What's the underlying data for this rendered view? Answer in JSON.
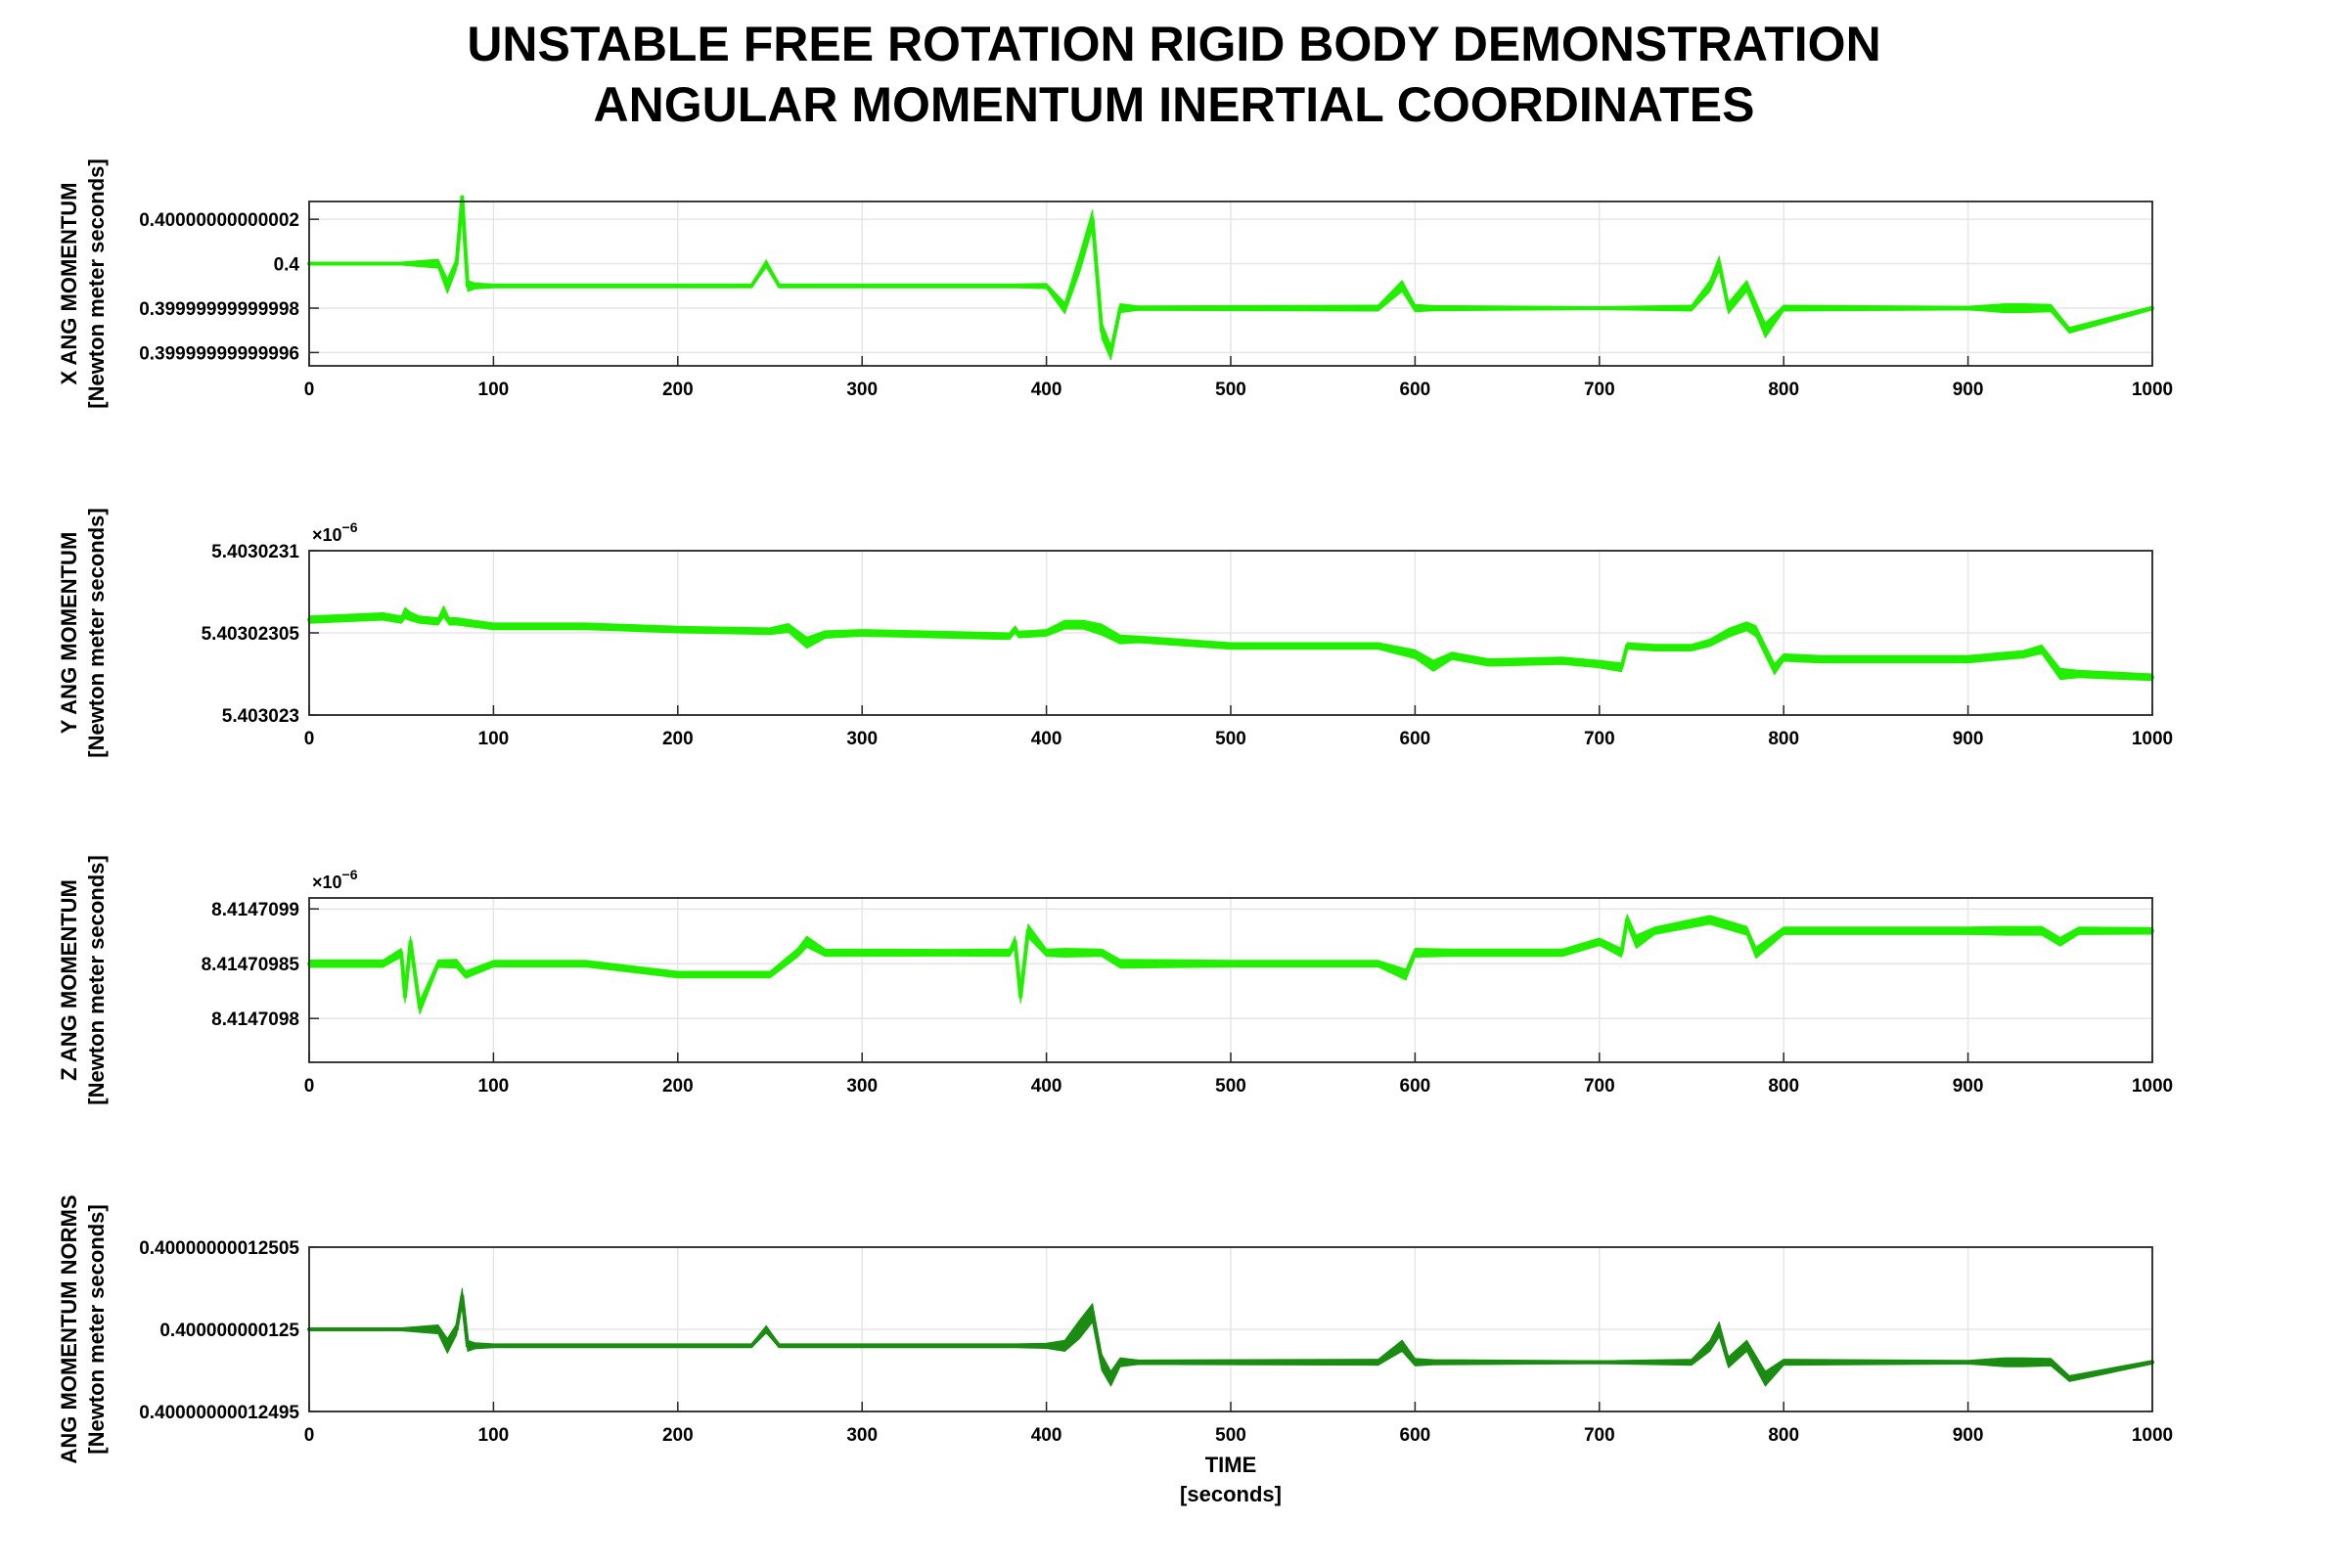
{
  "figure": {
    "title_line1": "UNSTABLE FREE ROTATION RIGID BODY DEMONSTRATION",
    "title_line2": "ANGULAR MOMENTUM    INERTIAL COORDINATES"
  },
  "colors": {
    "bright_green": "#22ee00",
    "dark_green": "#1a8c12",
    "grid": "#e6e6e6",
    "axis": "#262626"
  },
  "chart_data": [
    {
      "type": "line",
      "ylabel_line1": "X ANG MOMENTUM",
      "ylabel_line2": "[Newton meter seconds]",
      "xlabel": "",
      "xlim": [
        0,
        1000
      ],
      "x_ticks": [
        "0",
        "100",
        "200",
        "300",
        "400",
        "500",
        "600",
        "700",
        "800",
        "900",
        "1000"
      ],
      "ylim": [
        0.399999999999954,
        0.400000000000028
      ],
      "y_ticks": [
        0.40000000000002,
        0.4,
        0.39999999999998,
        0.39999999999996
      ],
      "y_tick_labels": [
        "0.40000000000002",
        "0.4",
        "0.39999999999998",
        "0.39999999999996"
      ],
      "exponent": "",
      "grid": true,
      "series": [
        {
          "color": "bright_green",
          "x": [
            0,
            50,
            70,
            75,
            80,
            83,
            86,
            90,
            100,
            200,
            240,
            248,
            255,
            270,
            380,
            383,
            400,
            410,
            418,
            425,
            430,
            435,
            440,
            450,
            580,
            593,
            600,
            610,
            700,
            750,
            760,
            765,
            770,
            780,
            790,
            800,
            900,
            920,
            930,
            945,
            955,
            1000
          ],
          "y": [
            0.4,
            0.4,
            0.4,
            0.39999999999999,
            0.4,
            0.40000000000003,
            0.39999999999999,
            0.39999999999999,
            0.39999999999999,
            0.39999999999999,
            0.39999999999999,
            0.4,
            0.39999999999999,
            0.39999999999999,
            0.39999999999999,
            0.39999999999999,
            0.39999999999999,
            0.39999999999998,
            0.4,
            0.40000000000002,
            0.39999999999997,
            0.39999999999996,
            0.39999999999998,
            0.39999999999998,
            0.39999999999998,
            0.39999999999999,
            0.39999999999998,
            0.39999999999998,
            0.39999999999998,
            0.39999999999998,
            0.39999999999999,
            0.4,
            0.39999999999998,
            0.39999999999999,
            0.39999999999997,
            0.39999999999998,
            0.39999999999998,
            0.39999999999998,
            0.39999999999998,
            0.39999999999998,
            0.39999999999997,
            0.39999999999998
          ],
          "band": [
            0.2,
            0.3,
            1.2,
            2.0,
            1.5,
            2.2,
            1.5,
            0.8,
            0.5,
            0.5,
            0.5,
            1.0,
            0.5,
            0.5,
            0.5,
            0.5,
            0.7,
            1.5,
            2.5,
            2.5,
            2.2,
            2.0,
            1.2,
            0.6,
            0.8,
            1.5,
            1.0,
            0.7,
            0.4,
            0.8,
            1.5,
            2.0,
            1.5,
            1.5,
            2.0,
            0.8,
            0.5,
            1.2,
            1.2,
            1.0,
            0.8,
            0.5
          ]
        }
      ]
    },
    {
      "type": "line",
      "ylabel_line1": "Y ANG MOMENTUM",
      "ylabel_line2": "[Newton meter seconds]",
      "xlabel": "",
      "xlim": [
        0,
        1000
      ],
      "x_ticks": [
        "0",
        "100",
        "200",
        "300",
        "400",
        "500",
        "600",
        "700",
        "800",
        "900",
        "1000"
      ],
      "ylim": [
        5.403023,
        5.4030231
      ],
      "y_ticks": [
        5.4030231,
        5.40302305,
        5.403023
      ],
      "y_tick_labels": [
        "5.4030231",
        "5.40302305",
        "5.403023"
      ],
      "exponent": "−6",
      "grid": true,
      "series": [
        {
          "color": "bright_green",
          "x": [
            0,
            40,
            50,
            52,
            55,
            60,
            70,
            73,
            76,
            80,
            100,
            150,
            200,
            250,
            260,
            270,
            280,
            300,
            380,
            383,
            385,
            400,
            410,
            420,
            430,
            440,
            450,
            500,
            580,
            600,
            610,
            620,
            640,
            680,
            700,
            712,
            715,
            730,
            750,
            760,
            770,
            780,
            785,
            795,
            800,
            820,
            900,
            930,
            940,
            950,
            960,
            1000
          ],
          "y": [
            5.403023058,
            5.40302306,
            5.403023058,
            5.403023062,
            5.40302306,
            5.403023058,
            5.403023057,
            5.403023063,
            5.403023057,
            5.403023057,
            5.403023054,
            5.403023054,
            5.403023052,
            5.403023051,
            5.403023053,
            5.403023044,
            5.403023049,
            5.40302305,
            5.403023048,
            5.403023052,
            5.403023049,
            5.40302305,
            5.403023055,
            5.403023055,
            5.403023052,
            5.403023046,
            5.403023046,
            5.403023042,
            5.403023042,
            5.403023037,
            5.40302303,
            5.403023036,
            5.403023032,
            5.403023033,
            5.403023031,
            5.403023029,
            5.403023042,
            5.403023041,
            5.403023041,
            5.403023044,
            5.40302305,
            5.403023054,
            5.403023051,
            5.403023028,
            5.403023035,
            5.403023034,
            5.403023034,
            5.403023037,
            5.40302304,
            5.403023025,
            5.403023025,
            5.403023023
          ],
          "band": [
            1.0,
            1.0,
            1.0,
            1.5,
            1.2,
            1.0,
            1.0,
            1.5,
            1.0,
            1.0,
            0.9,
            0.9,
            0.9,
            0.9,
            1.2,
            1.5,
            1.0,
            0.9,
            0.9,
            1.0,
            0.9,
            0.9,
            1.2,
            1.2,
            1.5,
            1.2,
            0.9,
            0.9,
            0.9,
            1.2,
            1.5,
            1.0,
            1.0,
            1.0,
            1.0,
            1.2,
            0.9,
            0.9,
            0.9,
            1.0,
            1.2,
            1.2,
            1.5,
            1.5,
            1.0,
            1.0,
            1.0,
            1.0,
            1.2,
            1.5,
            1.0,
            0.9
          ]
        }
      ]
    },
    {
      "type": "line",
      "ylabel_line1": "Z ANG MOMENTUM",
      "ylabel_line2": "[Newton meter seconds]",
      "xlabel": "",
      "xlim": [
        0,
        1000
      ],
      "x_ticks": [
        "0",
        "100",
        "200",
        "300",
        "400",
        "500",
        "600",
        "700",
        "800",
        "900",
        "1000"
      ],
      "ylim": [
        8.41470976,
        8.41470991
      ],
      "y_ticks": [
        8.4147099,
        8.41470985,
        8.4147098
      ],
      "y_tick_labels": [
        "8.4147099",
        "8.41470985",
        "8.4147098"
      ],
      "exponent": "−6",
      "grid": true,
      "series": [
        {
          "color": "bright_green",
          "x": [
            0,
            40,
            50,
            52,
            55,
            60,
            70,
            80,
            85,
            100,
            150,
            200,
            250,
            265,
            270,
            280,
            350,
            380,
            383,
            386,
            390,
            400,
            410,
            430,
            440,
            500,
            580,
            595,
            600,
            620,
            680,
            700,
            712,
            715,
            720,
            730,
            760,
            780,
            785,
            800,
            900,
            920,
            925,
            940,
            950,
            960,
            1000
          ],
          "y": [
            8.41470985,
            8.41470985,
            8.41470986,
            8.41470982,
            8.41470987,
            8.41470981,
            8.41470985,
            8.41470985,
            8.41470984,
            8.41470985,
            8.41470985,
            8.41470984,
            8.41470984,
            8.41470986,
            8.41470987,
            8.41470986,
            8.41470986,
            8.41470986,
            8.41470987,
            8.41470982,
            8.41470988,
            8.41470986,
            8.41470986,
            8.41470986,
            8.41470985,
            8.41470985,
            8.41470985,
            8.41470984,
            8.41470986,
            8.41470986,
            8.41470986,
            8.41470987,
            8.41470986,
            8.41470989,
            8.41470987,
            8.41470988,
            8.41470989,
            8.41470988,
            8.41470986,
            8.41470988,
            8.41470988,
            8.41470988,
            8.41470988,
            8.41470988,
            8.41470987,
            8.41470988,
            8.41470988
          ],
          "band": [
            1.0,
            1.0,
            1.2,
            1.8,
            1.5,
            1.8,
            1.0,
            1.2,
            1.0,
            0.9,
            0.9,
            0.9,
            0.9,
            1.2,
            1.5,
            1.0,
            0.9,
            1.0,
            1.5,
            1.8,
            1.8,
            1.0,
            1.2,
            1.0,
            1.2,
            0.9,
            0.9,
            1.5,
            1.2,
            1.0,
            1.0,
            1.0,
            1.2,
            1.5,
            1.8,
            1.0,
            1.2,
            1.2,
            1.5,
            1.0,
            1.0,
            1.2,
            1.2,
            1.2,
            1.2,
            1.0,
            0.9
          ]
        }
      ]
    },
    {
      "type": "line",
      "ylabel_line1": "ANG MOMENTUM NORMS",
      "ylabel_line2": "[Newton meter seconds]",
      "xlabel_line1": "TIME",
      "xlabel_line2": "[seconds]",
      "xlim": [
        0,
        1000
      ],
      "x_ticks": [
        "0",
        "100",
        "200",
        "300",
        "400",
        "500",
        "600",
        "700",
        "800",
        "900",
        "1000"
      ],
      "ylim": [
        0.40000000012495,
        0.40000000012505
      ],
      "y_ticks": [
        0.40000000012505,
        0.400000000125,
        0.40000000012495
      ],
      "y_tick_labels": [
        "0.40000000012505",
        "0.400000000125",
        "0.40000000012495"
      ],
      "exponent": "",
      "grid": true,
      "series": [
        {
          "color": "dark_green",
          "x": [
            0,
            50,
            70,
            75,
            80,
            83,
            86,
            90,
            100,
            200,
            240,
            248,
            255,
            270,
            380,
            383,
            400,
            410,
            418,
            425,
            430,
            435,
            440,
            450,
            580,
            593,
            600,
            610,
            700,
            750,
            760,
            765,
            770,
            780,
            790,
            800,
            900,
            920,
            930,
            945,
            955,
            1000
          ],
          "y": [
            0.400000000125,
            0.400000000125,
            0.400000000125,
            0.40000000012499,
            0.400000000125,
            0.40000000012502,
            0.40000000012499,
            0.40000000012499,
            0.40000000012499,
            0.40000000012499,
            0.40000000012499,
            0.400000000125,
            0.40000000012499,
            0.40000000012499,
            0.40000000012499,
            0.40000000012499,
            0.40000000012499,
            0.40000000012499,
            0.400000000125,
            0.40000000012501,
            0.40000000012498,
            0.40000000012497,
            0.40000000012498,
            0.40000000012498,
            0.40000000012498,
            0.40000000012499,
            0.40000000012498,
            0.40000000012498,
            0.40000000012498,
            0.40000000012498,
            0.40000000012499,
            0.400000000125,
            0.40000000012498,
            0.40000000012499,
            0.40000000012497,
            0.40000000012498,
            0.40000000012498,
            0.40000000012498,
            0.40000000012498,
            0.40000000012498,
            0.40000000012497,
            0.40000000012498
          ],
          "band": [
            0.2,
            0.3,
            1.2,
            2.0,
            1.5,
            2.2,
            1.5,
            0.8,
            0.5,
            0.5,
            0.5,
            1.0,
            0.5,
            0.5,
            0.5,
            0.5,
            0.7,
            1.5,
            2.5,
            2.5,
            2.2,
            2.0,
            1.2,
            0.6,
            0.8,
            1.5,
            1.0,
            0.7,
            0.4,
            0.8,
            1.5,
            2.0,
            1.5,
            1.5,
            2.0,
            0.8,
            0.5,
            1.2,
            1.2,
            1.0,
            0.8,
            0.5
          ]
        }
      ]
    }
  ]
}
